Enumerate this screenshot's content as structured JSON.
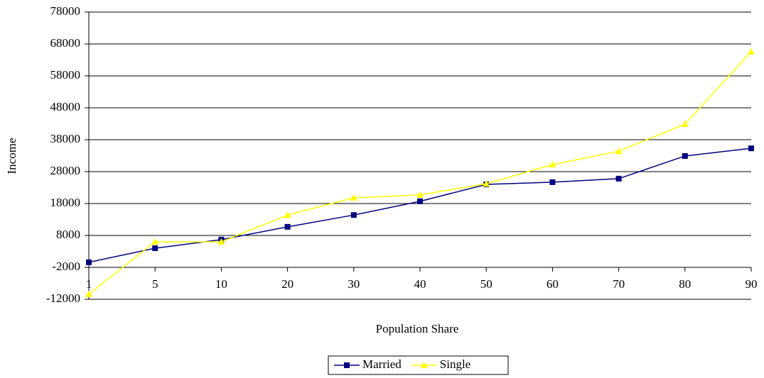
{
  "chart_data": {
    "type": "line",
    "xlabel": "Population Share",
    "ylabel": "Income",
    "categories": [
      "1",
      "5",
      "10",
      "20",
      "30",
      "40",
      "50",
      "60",
      "70",
      "80",
      "90"
    ],
    "series": [
      {
        "name": "Married",
        "color": "#000080",
        "marker": "square",
        "values": [
          -400,
          4000,
          6700,
          10700,
          14400,
          18700,
          24000,
          24700,
          25800,
          32900,
          35300
        ]
      },
      {
        "name": "Single",
        "color": "#ffff00",
        "marker": "triangle",
        "values": [
          -10400,
          6000,
          6000,
          14400,
          19800,
          20700,
          24200,
          30200,
          34400,
          42900,
          65600
        ]
      }
    ],
    "ylim": [
      -12000,
      78000
    ],
    "yticks": [
      -12000,
      -2000,
      8000,
      18000,
      28000,
      38000,
      48000,
      58000,
      68000,
      78000
    ],
    "grid": true,
    "legend": "bottom"
  }
}
